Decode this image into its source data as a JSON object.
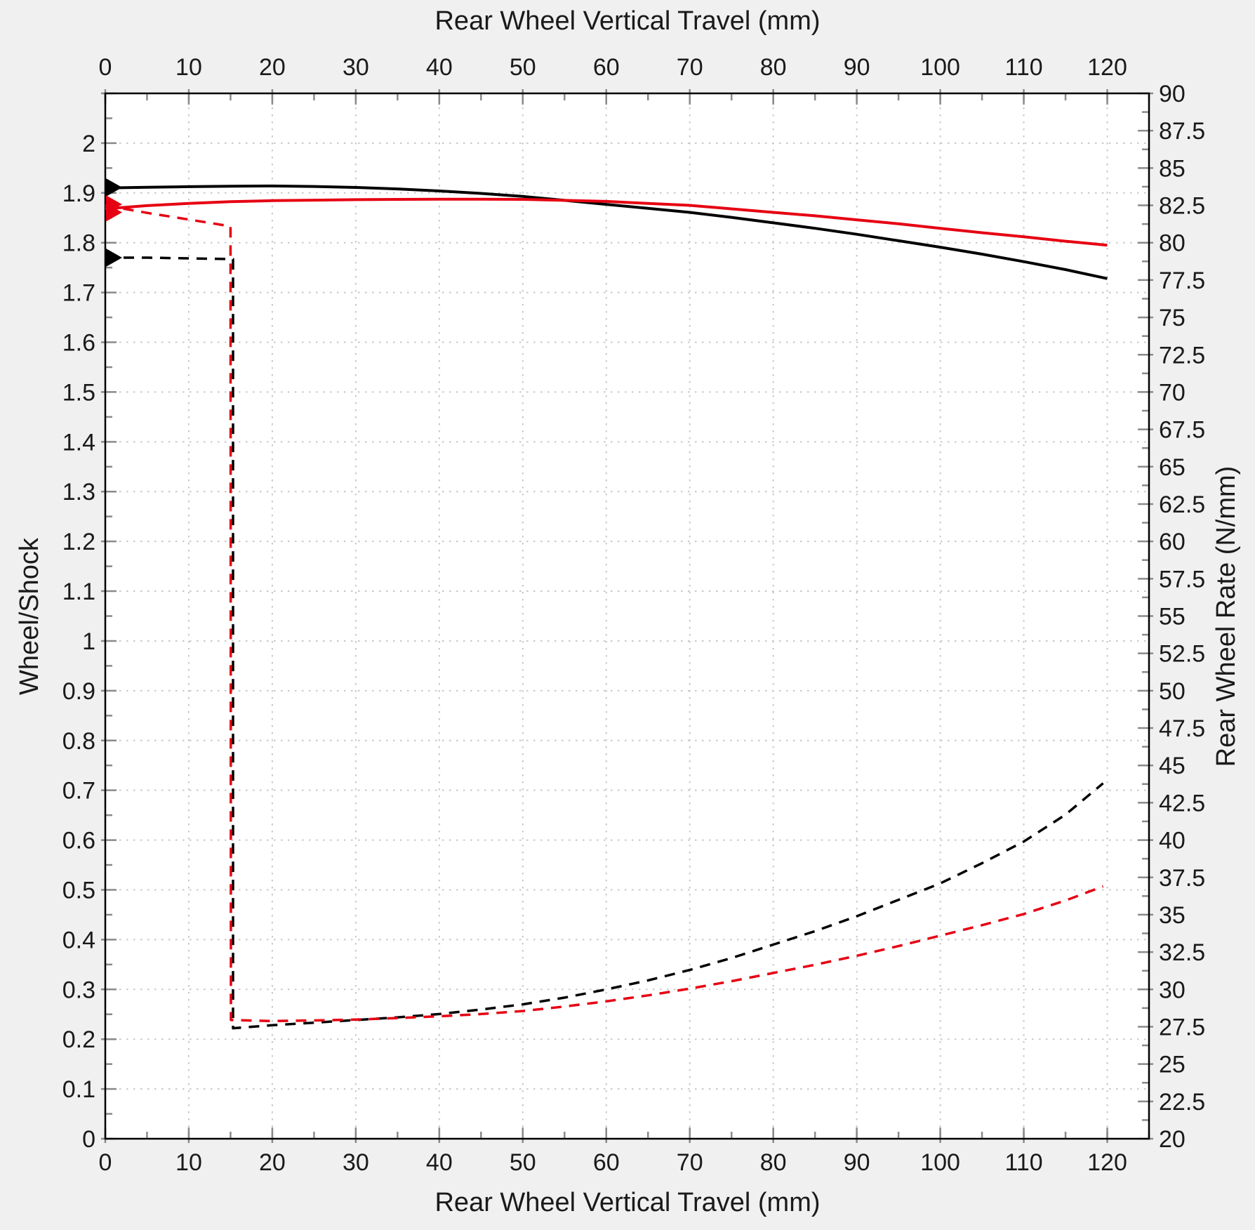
{
  "page": {
    "background_color": "#f0f0f0",
    "plot_background_color": "#ffffff",
    "grid_color": "#c8c8c8",
    "tick_color": "#8a8a8a",
    "frame_color": "#000000",
    "black_series_color": "#000000",
    "red_series_color": "#e60012"
  },
  "titles": {
    "top": "Rear Wheel Vertical Travel (mm)",
    "bottom": "Rear Wheel Vertical Travel (mm)",
    "left": "Wheel/Shock",
    "right": "Rear Wheel Rate (N/mm)"
  },
  "chart_data": {
    "type": "line",
    "x_axis": {
      "label": "Rear Wheel Vertical Travel (mm)",
      "min": 0,
      "max": 125,
      "major_tick": 10,
      "minor_tick": 5,
      "tick_labels": [
        "0",
        "10",
        "20",
        "30",
        "40",
        "50",
        "60",
        "70",
        "80",
        "90",
        "100",
        "110",
        "120"
      ],
      "mirrored_top": true
    },
    "y_left_axis": {
      "label": "Wheel/Shock",
      "min": 0,
      "max": 2.1,
      "major_tick": 0.1,
      "minor_tick": 0.05,
      "tick_labels": [
        "0",
        "0.1",
        "0.2",
        "0.3",
        "0.4",
        "0.5",
        "0.6",
        "0.7",
        "0.8",
        "0.9",
        "1",
        "1.1",
        "1.2",
        "1.3",
        "1.4",
        "1.5",
        "1.6",
        "1.7",
        "1.8",
        "1.9",
        "2"
      ]
    },
    "y_right_axis": {
      "label": "Rear Wheel Rate (N/mm)",
      "min": 20,
      "max": 90,
      "major_tick": 2.5,
      "minor_tick": 1.25,
      "tick_labels": [
        "20",
        "22.5",
        "25",
        "27.5",
        "30",
        "32.5",
        "35",
        "37.5",
        "40",
        "42.5",
        "45",
        "47.5",
        "50",
        "52.5",
        "55",
        "57.5",
        "60",
        "62.5",
        "65",
        "67.5",
        "70",
        "72.5",
        "75",
        "77.5",
        "80",
        "82.5",
        "85",
        "87.5",
        "90"
      ]
    },
    "grid": {
      "style": "dotted",
      "on_major_x": true,
      "on_major_y_left": true
    },
    "series": [
      {
        "name": "wheel-shock-ratio-black",
        "axis": "left",
        "color": "#000000",
        "dash": "solid",
        "points": [
          [
            0,
            1.91
          ],
          [
            5,
            1.9115
          ],
          [
            10,
            1.9125
          ],
          [
            15,
            1.9135
          ],
          [
            20,
            1.914
          ],
          [
            25,
            1.913
          ],
          [
            30,
            1.911
          ],
          [
            35,
            1.908
          ],
          [
            40,
            1.904
          ],
          [
            45,
            1.899
          ],
          [
            50,
            1.893
          ],
          [
            55,
            1.885
          ],
          [
            60,
            1.877
          ],
          [
            65,
            1.869
          ],
          [
            70,
            1.861
          ],
          [
            75,
            1.851
          ],
          [
            80,
            1.84
          ],
          [
            85,
            1.829
          ],
          [
            90,
            1.817
          ],
          [
            95,
            1.804
          ],
          [
            100,
            1.791
          ],
          [
            105,
            1.777
          ],
          [
            110,
            1.762
          ],
          [
            115,
            1.746
          ],
          [
            120,
            1.728
          ]
        ]
      },
      {
        "name": "wheel-shock-ratio-red",
        "axis": "left",
        "color": "#e60012",
        "dash": "solid",
        "points": [
          [
            0,
            1.868
          ],
          [
            5,
            1.8745
          ],
          [
            10,
            1.879
          ],
          [
            15,
            1.8825
          ],
          [
            20,
            1.8845
          ],
          [
            25,
            1.8855
          ],
          [
            30,
            1.8865
          ],
          [
            35,
            1.887
          ],
          [
            40,
            1.8875
          ],
          [
            45,
            1.8875
          ],
          [
            50,
            1.887
          ],
          [
            55,
            1.885
          ],
          [
            60,
            1.883
          ],
          [
            65,
            1.879
          ],
          [
            70,
            1.875
          ],
          [
            75,
            1.868
          ],
          [
            80,
            1.861
          ],
          [
            85,
            1.854
          ],
          [
            90,
            1.846
          ],
          [
            95,
            1.838
          ],
          [
            100,
            1.829
          ],
          [
            105,
            1.82
          ],
          [
            110,
            1.812
          ],
          [
            115,
            1.803
          ],
          [
            120,
            1.795
          ]
        ]
      },
      {
        "name": "rear-wheel-rate-black",
        "axis": "right",
        "color": "#000000",
        "dash": "dashed",
        "points": [
          [
            0,
            79.0
          ],
          [
            5,
            79.0
          ],
          [
            10,
            78.95
          ],
          [
            15.3,
            78.9
          ],
          [
            15.3,
            27.4
          ],
          [
            20,
            27.6
          ],
          [
            25,
            27.77
          ],
          [
            30,
            27.95
          ],
          [
            35,
            28.13
          ],
          [
            40,
            28.35
          ],
          [
            45,
            28.65
          ],
          [
            50,
            29.0
          ],
          [
            55,
            29.45
          ],
          [
            60,
            30.0
          ],
          [
            65,
            30.6
          ],
          [
            70,
            31.3
          ],
          [
            75,
            32.1
          ],
          [
            80,
            33.0
          ],
          [
            85,
            33.9
          ],
          [
            90,
            34.9
          ],
          [
            95,
            36.0
          ],
          [
            100,
            37.1
          ],
          [
            105,
            38.45
          ],
          [
            110,
            39.9
          ],
          [
            115,
            41.7
          ],
          [
            119.5,
            43.8
          ]
        ]
      },
      {
        "name": "rear-wheel-rate-red",
        "axis": "right",
        "color": "#e60012",
        "dash": "dashed",
        "points": [
          [
            0,
            82.5
          ],
          [
            5,
            82.0
          ],
          [
            10,
            81.55
          ],
          [
            15,
            81.1
          ],
          [
            15.05,
            27.95
          ],
          [
            20,
            27.88
          ],
          [
            25,
            27.92
          ],
          [
            30,
            27.98
          ],
          [
            35,
            28.08
          ],
          [
            40,
            28.2
          ],
          [
            45,
            28.35
          ],
          [
            50,
            28.55
          ],
          [
            55,
            28.85
          ],
          [
            60,
            29.2
          ],
          [
            65,
            29.6
          ],
          [
            70,
            30.05
          ],
          [
            75,
            30.55
          ],
          [
            80,
            31.1
          ],
          [
            85,
            31.65
          ],
          [
            90,
            32.25
          ],
          [
            95,
            32.9
          ],
          [
            100,
            33.6
          ],
          [
            105,
            34.3
          ],
          [
            110,
            35.05
          ],
          [
            115,
            35.95
          ],
          [
            119.5,
            36.9
          ]
        ]
      }
    ],
    "start_markers": [
      {
        "name": "start-arrow-black-solid",
        "axis": "left",
        "value": 1.911,
        "color": "#000000"
      },
      {
        "name": "start-arrow-black-dashed",
        "axis": "right",
        "value": 79.0,
        "color": "#000000"
      },
      {
        "name": "start-arrow-red-solid",
        "axis": "left",
        "value": 1.877,
        "color": "#e60012"
      },
      {
        "name": "start-arrow-red-dashed",
        "axis": "left",
        "value": 1.861,
        "color": "#e60012"
      }
    ]
  }
}
